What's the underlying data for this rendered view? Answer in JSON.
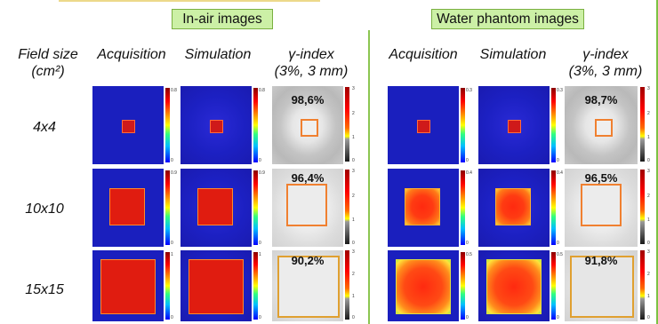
{
  "sections": {
    "in_air": "In-air images",
    "water": "Water phantom images"
  },
  "headers": {
    "field_size": "Field size",
    "field_size_unit": "(cm²)",
    "acquisition": "Acquisition",
    "simulation": "Simulation",
    "gamma": "γ-index",
    "gamma_criteria": "(3%, 3 mm)"
  },
  "rows": [
    {
      "label": "4x4",
      "in_air": {
        "acq_max": "0.8",
        "sim_max": "0.8",
        "gamma_pass": "98,6%"
      },
      "water": {
        "acq_max": "0.3",
        "sim_max": "0.3",
        "gamma_pass": "98,7%"
      }
    },
    {
      "label": "10x10",
      "in_air": {
        "acq_max": "0.9",
        "sim_max": "0.9",
        "gamma_pass": "96,4%"
      },
      "water": {
        "acq_max": "0.4",
        "sim_max": "0.4",
        "gamma_pass": "96,5%"
      }
    },
    {
      "label": "15x15",
      "in_air": {
        "acq_max": "1",
        "sim_max": "1",
        "gamma_pass": "90,2%"
      },
      "water": {
        "acq_max": "0.5",
        "sim_max": "0.5",
        "gamma_pass": "91,8%"
      }
    }
  ],
  "scales": {
    "dose_min": "0",
    "gamma_ticks": [
      "3",
      "2",
      "1",
      "0"
    ]
  },
  "colors": {
    "title_fill": "#ccf0a6",
    "divider": "#8cc652",
    "field_fill": "#e01c10",
    "background_blue": "#1a1fbe"
  }
}
